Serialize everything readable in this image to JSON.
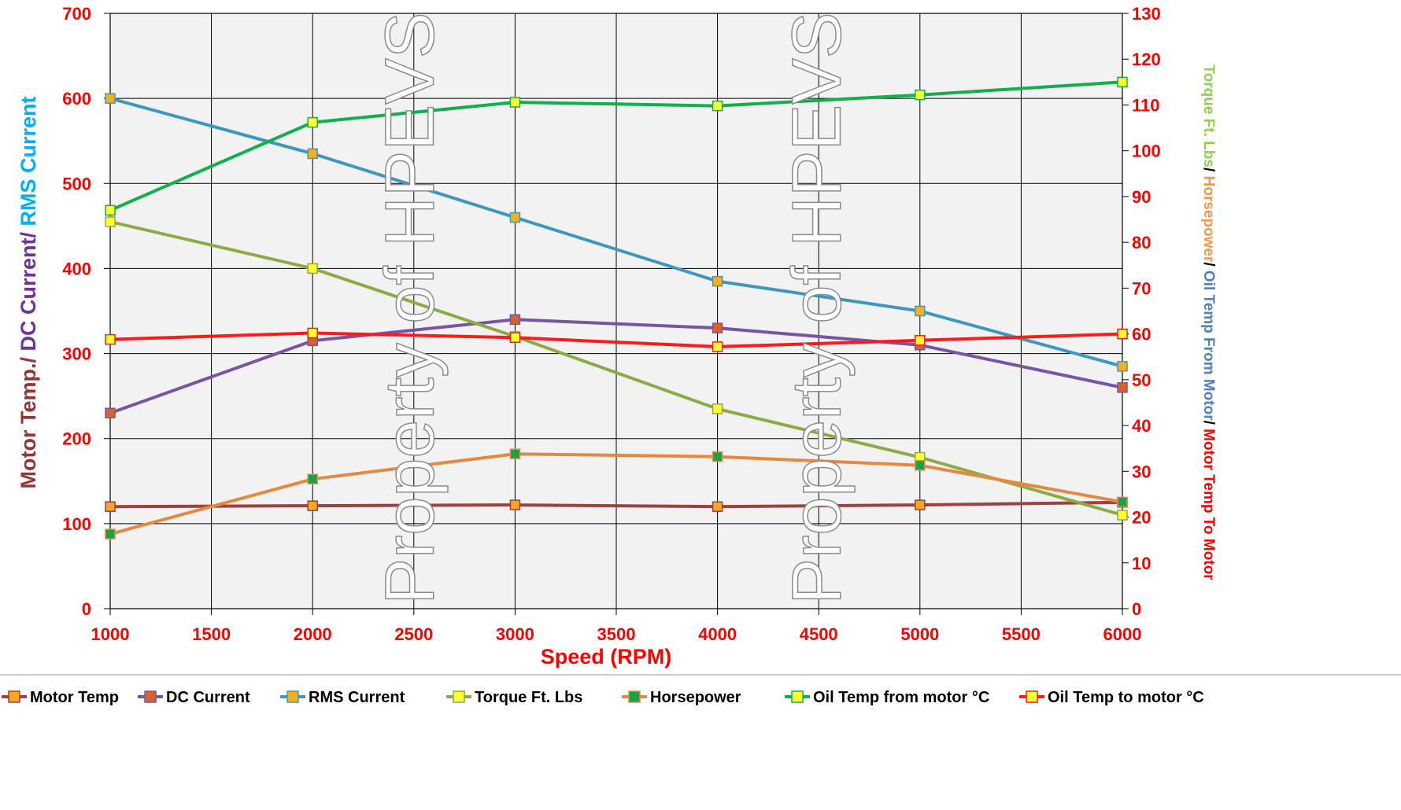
{
  "chart_data": {
    "type": "line",
    "xlabel": "Speed (RPM)",
    "x_ticks": [
      "1000",
      "1500",
      "2000",
      "2500",
      "3000",
      "3500",
      "4000",
      "4500",
      "5000",
      "5500",
      "6000"
    ],
    "xlim": [
      1000,
      6000
    ],
    "ylim_left": [
      0,
      700
    ],
    "ylim_right": [
      0,
      130
    ],
    "left_ticks": [
      "0",
      "100",
      "200",
      "300",
      "400",
      "500",
      "600",
      "700"
    ],
    "right_ticks": [
      "0",
      "10",
      "20",
      "30",
      "40",
      "50",
      "60",
      "70",
      "80",
      "90",
      "100",
      "110",
      "120",
      "130"
    ],
    "ylabel_left_parts": [
      {
        "text": "Motor Temp./ ",
        "color": "#943634"
      },
      {
        "text": "DC Current/ ",
        "color": "#7030a0"
      },
      {
        "text": "RMS Current",
        "color": "#00b0f0"
      }
    ],
    "ylabel_right_parts": [
      {
        "text": "Torque  Ft. Lbs",
        "color": "#92d050"
      },
      {
        "text": "/ ",
        "color": "#000000"
      },
      {
        "text": "Horsepower",
        "color": "#f79646"
      },
      {
        "text": "/ ",
        "color": "#000000"
      },
      {
        "text": "Oil Temp From Motor",
        "color": "#4f81bd"
      },
      {
        "text": "/ ",
        "color": "#000000"
      },
      {
        "text": "Motor Temp To Motor",
        "color": "#ff0000"
      }
    ],
    "watermark": "Property of HPEVS",
    "grid": true,
    "legend_position": "bottom",
    "series": [
      {
        "name": "Motor Temp",
        "axis": "left",
        "color": "#a0413f",
        "marker_fill": "#f5a623",
        "x": [
          1000,
          2000,
          3000,
          4000,
          5000,
          6000
        ],
        "values": [
          120,
          121,
          122,
          120,
          122,
          125
        ]
      },
      {
        "name": "DC Current",
        "axis": "left",
        "color": "#7a54a4",
        "marker_fill": "#d9622b",
        "x": [
          1000,
          2000,
          3000,
          4000,
          5000,
          6000
        ],
        "values": [
          230,
          315,
          340,
          330,
          310,
          260
        ]
      },
      {
        "name": "RMS Current",
        "axis": "left",
        "color": "#3d98c1",
        "marker_fill": "#f2b220",
        "x": [
          1000,
          2000,
          3000,
          4000,
          5000,
          6000
        ],
        "values": [
          600,
          535,
          460,
          385,
          350,
          285
        ]
      },
      {
        "name": "Torque Ft. Lbs",
        "axis": "left",
        "color": "#8cab45",
        "marker_fill": "#ffff33",
        "x": [
          1000,
          2000,
          3000,
          4000,
          5000,
          6000
        ],
        "values": [
          455,
          400,
          320,
          235,
          178,
          110
        ]
      },
      {
        "name": "Horsepower",
        "axis": "right",
        "color": "#e6883f",
        "marker_fill": "#16a34a",
        "x": [
          1000,
          2000,
          3000,
          4000,
          5000,
          6000
        ],
        "values": [
          16.3,
          28.3,
          33.8,
          33.2,
          31.3,
          23.3
        ]
      },
      {
        "name": "Oil Temp from motor °C",
        "axis": "right",
        "color": "#10b04c",
        "marker_fill": "#ffff33",
        "x": [
          1000,
          2000,
          3000,
          4000,
          5000,
          6000
        ],
        "values": [
          87,
          106.2,
          110.6,
          109.8,
          112.2,
          115
        ]
      },
      {
        "name": "Oil Temp to motor °C",
        "axis": "right",
        "color": "#ff1a1a",
        "marker_fill": "#ffff33",
        "x": [
          1000,
          2000,
          3000,
          4000,
          5000,
          6000
        ],
        "values": [
          58.8,
          60.2,
          59.2,
          57.2,
          58.6,
          60
        ]
      }
    ]
  }
}
